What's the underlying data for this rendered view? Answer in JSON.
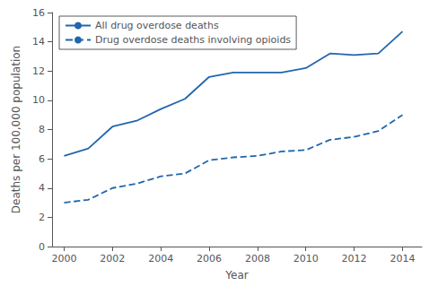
{
  "chart_data": {
    "type": "line",
    "xlabel": "Year",
    "ylabel": "Deaths per 100,000 population",
    "x": [
      2000,
      2001,
      2002,
      2003,
      2004,
      2005,
      2006,
      2007,
      2008,
      2009,
      2010,
      2011,
      2012,
      2013,
      2014
    ],
    "series": [
      {
        "name": "All drug overdose deaths",
        "color": "#2166ac",
        "line_style": "solid",
        "values": [
          6.2,
          6.7,
          8.2,
          8.6,
          9.4,
          10.1,
          11.6,
          11.9,
          11.9,
          11.9,
          12.2,
          13.2,
          13.1,
          13.2,
          14.7
        ]
      },
      {
        "name": "Drug overdose deaths involving opioids",
        "color": "#2166ac",
        "line_style": "dashed",
        "values": [
          3.0,
          3.2,
          4.0,
          4.3,
          4.8,
          5.0,
          5.9,
          6.1,
          6.2,
          6.5,
          6.6,
          7.3,
          7.5,
          7.9,
          9.0
        ]
      }
    ],
    "xlim": [
      1999.5,
      2014.8
    ],
    "ylim": [
      0,
      16
    ],
    "xticks": [
      2000,
      2002,
      2004,
      2006,
      2008,
      2010,
      2012,
      2014
    ],
    "yticks": [
      0,
      2,
      4,
      6,
      8,
      10,
      12,
      14,
      16
    ],
    "grid": false,
    "legend": "upper left"
  }
}
